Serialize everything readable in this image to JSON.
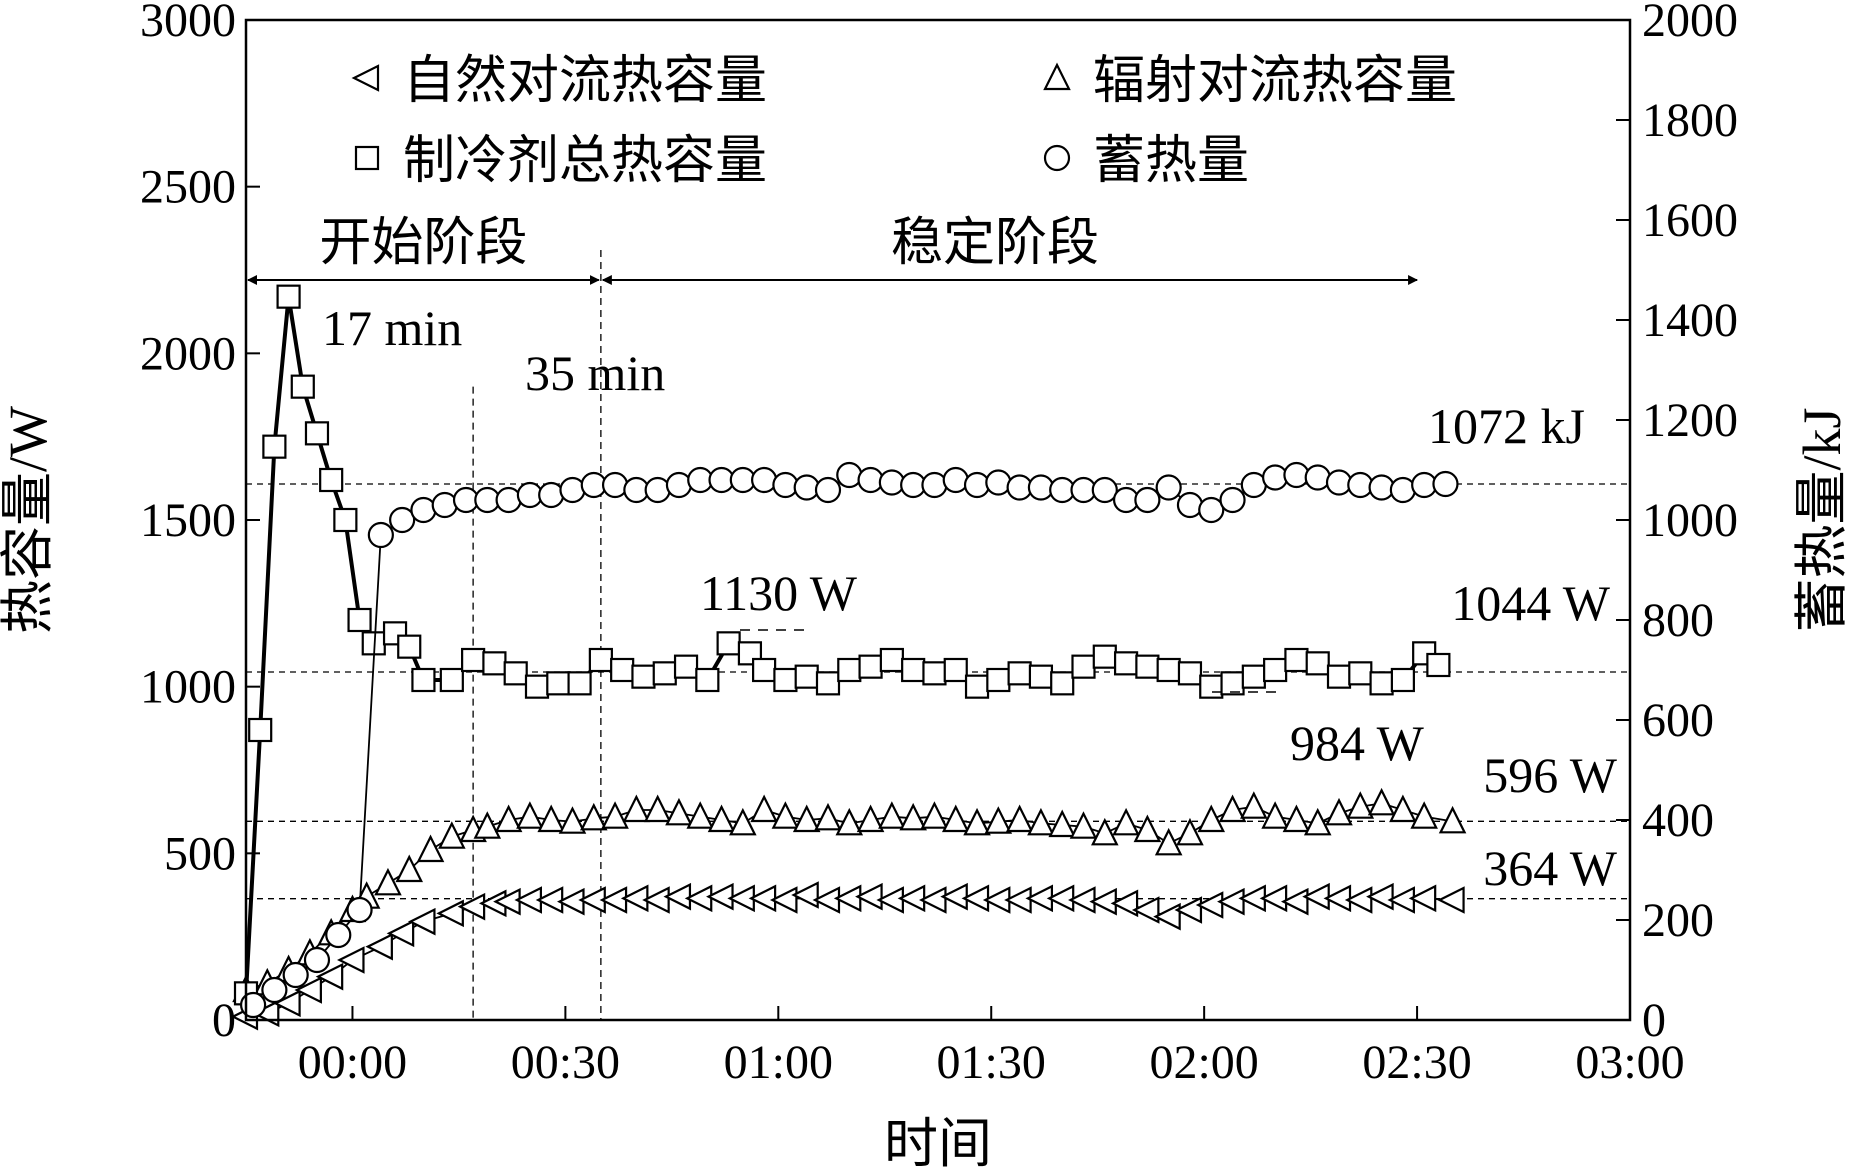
{
  "chart_data": {
    "type": "line",
    "xlabel": "时间",
    "ylabel_left": "热容量/W",
    "ylabel_right": "蓄热量/kJ",
    "xlim_min": [
      -15,
      180
    ],
    "xticks": [
      {
        "value": 0,
        "label": "00:00"
      },
      {
        "value": 30,
        "label": "00:30"
      },
      {
        "value": 60,
        "label": "01:00"
      },
      {
        "value": 90,
        "label": "01:30"
      },
      {
        "value": 120,
        "label": "02:00"
      },
      {
        "value": 150,
        "label": "02:30"
      },
      {
        "value": 180,
        "label": "03:00"
      }
    ],
    "ylim_left": [
      0,
      3000
    ],
    "yticks_left": [
      "0",
      "500",
      "1000",
      "1500",
      "2000",
      "2500",
      "3000"
    ],
    "ylim_right": [
      0,
      2000
    ],
    "yticks_right": [
      "0",
      "200",
      "400",
      "600",
      "800",
      "1000",
      "1200",
      "1400",
      "1600",
      "1800",
      "2000"
    ],
    "series": [
      {
        "name": "自然对流热容量",
        "marker": "triangle-left",
        "axis": "left",
        "x": [
          -15,
          -12,
          -9,
          -6,
          -3,
          0,
          4,
          7,
          10,
          14,
          17,
          20,
          22,
          25,
          28,
          31,
          34,
          37,
          40,
          43,
          46,
          49,
          52,
          55,
          58,
          61,
          64,
          67,
          70,
          73,
          76,
          79,
          82,
          85,
          88,
          91,
          94,
          97,
          100,
          103,
          106,
          109,
          112,
          115,
          118,
          121,
          124,
          127,
          130,
          133,
          136,
          139,
          142,
          145,
          148,
          151,
          155
        ],
        "y": [
          10,
          20,
          50,
          90,
          130,
          180,
          220,
          260,
          295,
          320,
          340,
          350,
          355,
          360,
          360,
          355,
          360,
          360,
          365,
          360,
          370,
          365,
          370,
          365,
          365,
          360,
          375,
          360,
          365,
          370,
          360,
          365,
          360,
          370,
          365,
          360,
          360,
          365,
          365,
          360,
          355,
          350,
          330,
          310,
          330,
          345,
          355,
          365,
          365,
          355,
          370,
          365,
          360,
          370,
          360,
          365,
          360
        ]
      },
      {
        "name": "辐射对流热容量",
        "marker": "triangle-up",
        "axis": "left",
        "x": [
          -15,
          -12,
          -9,
          -6,
          -3,
          0,
          2,
          5,
          8,
          11,
          14,
          17,
          19,
          22,
          25,
          28,
          31,
          34,
          37,
          40,
          43,
          46,
          49,
          52,
          55,
          58,
          61,
          64,
          67,
          70,
          73,
          76,
          79,
          82,
          85,
          88,
          91,
          94,
          97,
          100,
          103,
          106,
          109,
          112,
          115,
          118,
          121,
          124,
          127,
          130,
          133,
          136,
          139,
          142,
          145,
          148,
          151,
          155
        ],
        "y": [
          90,
          110,
          150,
          200,
          260,
          330,
          370,
          410,
          450,
          510,
          550,
          570,
          580,
          600,
          610,
          600,
          595,
          605,
          610,
          630,
          630,
          620,
          610,
          600,
          590,
          630,
          610,
          600,
          605,
          590,
          600,
          610,
          605,
          610,
          600,
          590,
          595,
          600,
          590,
          585,
          580,
          560,
          590,
          570,
          530,
          560,
          600,
          630,
          640,
          610,
          600,
          590,
          620,
          640,
          650,
          630,
          610,
          596
        ]
      },
      {
        "name": "制冷剂总热容量",
        "marker": "square",
        "axis": "left",
        "x": [
          -15,
          -13,
          -11,
          -9,
          -7,
          -5,
          -3,
          -1,
          1,
          3,
          6,
          8,
          10,
          14,
          17,
          20,
          23,
          26,
          29,
          32,
          35,
          38,
          41,
          44,
          47,
          50,
          53,
          56,
          58,
          61,
          64,
          67,
          70,
          73,
          76,
          79,
          82,
          85,
          88,
          91,
          94,
          97,
          100,
          103,
          106,
          109,
          112,
          115,
          118,
          121,
          124,
          127,
          130,
          133,
          136,
          139,
          142,
          145,
          148,
          151,
          153
        ],
        "y": [
          80,
          870,
          1720,
          2170,
          1900,
          1760,
          1620,
          1500,
          1200,
          1130,
          1160,
          1120,
          1020,
          1020,
          1080,
          1070,
          1040,
          1000,
          1010,
          1010,
          1080,
          1050,
          1030,
          1040,
          1060,
          1020,
          1130,
          1100,
          1050,
          1020,
          1030,
          1010,
          1050,
          1060,
          1080,
          1050,
          1040,
          1050,
          1000,
          1020,
          1040,
          1030,
          1010,
          1060,
          1090,
          1070,
          1060,
          1050,
          1040,
          1000,
          1010,
          1030,
          1050,
          1080,
          1070,
          1030,
          1040,
          1010,
          1020,
          1100,
          1065
        ]
      },
      {
        "name": "蓄热量",
        "marker": "circle",
        "axis": "right",
        "x": [
          -14,
          -11,
          -8,
          -5,
          -2,
          1,
          4,
          7,
          10,
          13,
          16,
          19,
          22,
          25,
          28,
          31,
          34,
          37,
          40,
          43,
          46,
          49,
          52,
          55,
          58,
          61,
          64,
          67,
          70,
          73,
          76,
          79,
          82,
          85,
          88,
          91,
          94,
          97,
          100,
          103,
          106,
          109,
          112,
          115,
          118,
          121,
          124,
          127,
          130,
          133,
          136,
          139,
          142,
          145,
          148,
          151,
          154
        ],
        "y": [
          30,
          60,
          90,
          120,
          170,
          220,
          970,
          1000,
          1020,
          1030,
          1040,
          1040,
          1040,
          1050,
          1050,
          1060,
          1070,
          1070,
          1060,
          1060,
          1070,
          1080,
          1080,
          1080,
          1080,
          1070,
          1065,
          1060,
          1090,
          1080,
          1075,
          1070,
          1070,
          1080,
          1070,
          1075,
          1065,
          1065,
          1060,
          1060,
          1060,
          1040,
          1040,
          1065,
          1030,
          1020,
          1040,
          1070,
          1085,
          1090,
          1085,
          1075,
          1070,
          1065,
          1060,
          1070,
          1072
        ]
      }
    ],
    "reference_lines": [
      {
        "axis": "left",
        "value": 364
      },
      {
        "axis": "left",
        "value": 596
      },
      {
        "axis": "left",
        "value": 1044
      },
      {
        "axis": "right",
        "value": 1072
      }
    ],
    "vertical_lines": [
      17,
      35
    ],
    "phases": [
      {
        "label": "开始阶段",
        "from": -15,
        "to": 35
      },
      {
        "label": "稳定阶段",
        "from": 35,
        "to": 150
      }
    ],
    "annotations": [
      {
        "text": "17 min"
      },
      {
        "text": "35 min"
      },
      {
        "text": "1072 kJ"
      },
      {
        "text": "1130 W"
      },
      {
        "text": "1044 W"
      },
      {
        "text": "984 W"
      },
      {
        "text": "596 W"
      },
      {
        "text": "364 W"
      }
    ],
    "legend_position": "top, two columns"
  }
}
